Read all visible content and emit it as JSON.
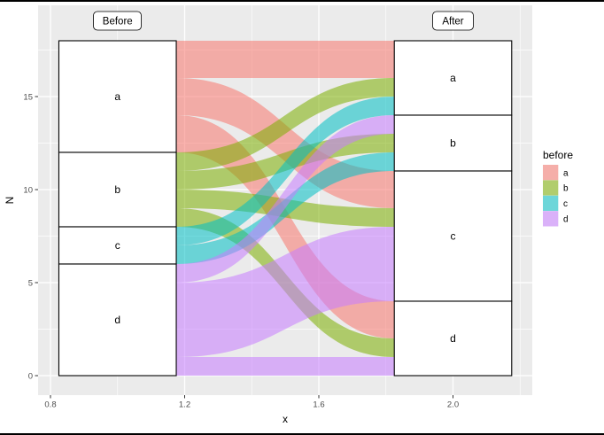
{
  "plot": {
    "x_axis_label": "x",
    "y_axis_label": "N",
    "x_tick_labels": [
      "0.8",
      "1.2",
      "1.6",
      "2.0"
    ],
    "y_tick_labels": [
      "0",
      "5",
      "10",
      "15"
    ],
    "axis_top_labels": [
      "Before",
      "After"
    ]
  },
  "legend": {
    "title": "before",
    "items": [
      {
        "label": "a",
        "color": "#F8766D"
      },
      {
        "label": "b",
        "color": "#7CAE00"
      },
      {
        "label": "c",
        "color": "#00BFC4"
      },
      {
        "label": "d",
        "color": "#C77CFF"
      }
    ]
  },
  "theme": {
    "panel_bg": "#EBEBEB",
    "grid_color": "#FFFFFF",
    "tick_label_color": "#4D4D4D",
    "stratum_fill": "#FFFFFF",
    "stratum_border": "#000000",
    "legend_key_bg": "#F2F2F2",
    "text_color": "#000000"
  },
  "chart_data": {
    "type": "sankey",
    "variant": "alluvial",
    "title": "",
    "xlabel": "x",
    "ylabel": "N",
    "x_axis_names": [
      "Before",
      "After"
    ],
    "x_axis_positions": [
      1,
      2
    ],
    "x_ticks": [
      0.8,
      1.2,
      1.6,
      2.0
    ],
    "x_minor_ticks": [
      1.0,
      1.4,
      1.8,
      2.2
    ],
    "y_ticks": [
      0,
      5,
      10,
      15
    ],
    "y_minor_ticks": [
      2.5,
      7.5,
      12.5,
      17.5
    ],
    "ylim": [
      0,
      18
    ],
    "stratum_width": 0.35,
    "flow_alpha": 0.55,
    "colors": {
      "a": "#F8766D",
      "b": "#7CAE00",
      "c": "#00BFC4",
      "d": "#C77CFF"
    },
    "before_strata": [
      {
        "label": "a",
        "span": [
          12,
          18
        ],
        "n": 6
      },
      {
        "label": "b",
        "span": [
          8,
          12
        ],
        "n": 4
      },
      {
        "label": "c",
        "span": [
          6,
          8
        ],
        "n": 2
      },
      {
        "label": "d",
        "span": [
          0,
          6
        ],
        "n": 6
      }
    ],
    "after_strata": [
      {
        "label": "a",
        "span": [
          14,
          18
        ],
        "n": 4
      },
      {
        "label": "b",
        "span": [
          11,
          14
        ],
        "n": 3
      },
      {
        "label": "c",
        "span": [
          4,
          11
        ],
        "n": 7
      },
      {
        "label": "d",
        "span": [
          0,
          4
        ],
        "n": 4
      }
    ],
    "flows": [
      {
        "from": "a",
        "to": "a",
        "n": 2,
        "before_span": [
          16,
          18
        ],
        "after_span": [
          16,
          18
        ]
      },
      {
        "from": "a",
        "to": "c",
        "n": 2,
        "before_span": [
          14,
          16
        ],
        "after_span": [
          9,
          11
        ]
      },
      {
        "from": "a",
        "to": "d",
        "n": 2,
        "before_span": [
          12,
          14
        ],
        "after_span": [
          2,
          4
        ]
      },
      {
        "from": "b",
        "to": "a",
        "n": 1,
        "before_span": [
          11,
          12
        ],
        "after_span": [
          15,
          16
        ]
      },
      {
        "from": "b",
        "to": "b",
        "n": 1,
        "before_span": [
          10,
          11
        ],
        "after_span": [
          12,
          13
        ]
      },
      {
        "from": "b",
        "to": "c",
        "n": 1,
        "before_span": [
          9,
          10
        ],
        "after_span": [
          8,
          9
        ]
      },
      {
        "from": "b",
        "to": "d",
        "n": 1,
        "before_span": [
          8,
          9
        ],
        "after_span": [
          1,
          2
        ]
      },
      {
        "from": "c",
        "to": "a",
        "n": 1,
        "before_span": [
          7,
          8
        ],
        "after_span": [
          14,
          15
        ]
      },
      {
        "from": "c",
        "to": "b",
        "n": 1,
        "before_span": [
          6,
          7
        ],
        "after_span": [
          11,
          12
        ]
      },
      {
        "from": "d",
        "to": "b",
        "n": 1,
        "before_span": [
          5,
          6
        ],
        "after_span": [
          13,
          14
        ]
      },
      {
        "from": "d",
        "to": "c",
        "n": 4,
        "before_span": [
          1,
          5
        ],
        "after_span": [
          4,
          8
        ]
      },
      {
        "from": "d",
        "to": "d",
        "n": 1,
        "before_span": [
          0,
          1
        ],
        "after_span": [
          0,
          1
        ]
      }
    ]
  }
}
